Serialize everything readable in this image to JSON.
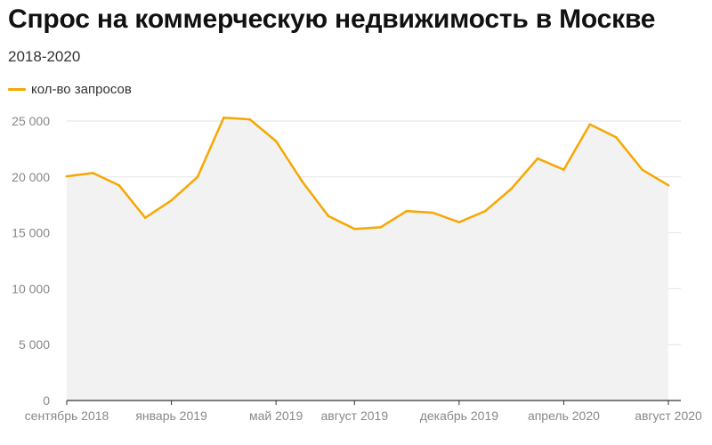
{
  "chart_data": {
    "type": "area",
    "title": "Спрос на коммерческую недвижимость в Москве",
    "subtitle": "2018-2020",
    "legend_position": "top-left",
    "grid": true,
    "series": [
      {
        "name": "кол-во запросов",
        "color": "#f5a800",
        "fill": "#f2f2f2",
        "values": [
          20050,
          20350,
          19250,
          16350,
          17900,
          20000,
          25300,
          25150,
          23200,
          19600,
          16500,
          15350,
          15500,
          16950,
          16800,
          15950,
          16950,
          18950,
          21650,
          20650,
          24700,
          23550,
          20650,
          19250
        ]
      }
    ],
    "x_tick_labels": [
      {
        "index": 0,
        "label": "сентябрь 2018"
      },
      {
        "index": 4,
        "label": "январь 2019"
      },
      {
        "index": 8,
        "label": "май 2019"
      },
      {
        "index": 11,
        "label": "август 2019"
      },
      {
        "index": 15,
        "label": "декабрь 2019"
      },
      {
        "index": 19,
        "label": "апрель 2020"
      },
      {
        "index": 23,
        "label": "август 2020"
      }
    ],
    "y_ticks": [
      {
        "value": 0,
        "label": "0"
      },
      {
        "value": 5000,
        "label": "5 000"
      },
      {
        "value": 10000,
        "label": "10 000"
      },
      {
        "value": 15000,
        "label": "15 000"
      },
      {
        "value": 20000,
        "label": "20 000"
      },
      {
        "value": 25000,
        "label": "25 000"
      }
    ],
    "ylim": [
      0,
      25000
    ]
  }
}
